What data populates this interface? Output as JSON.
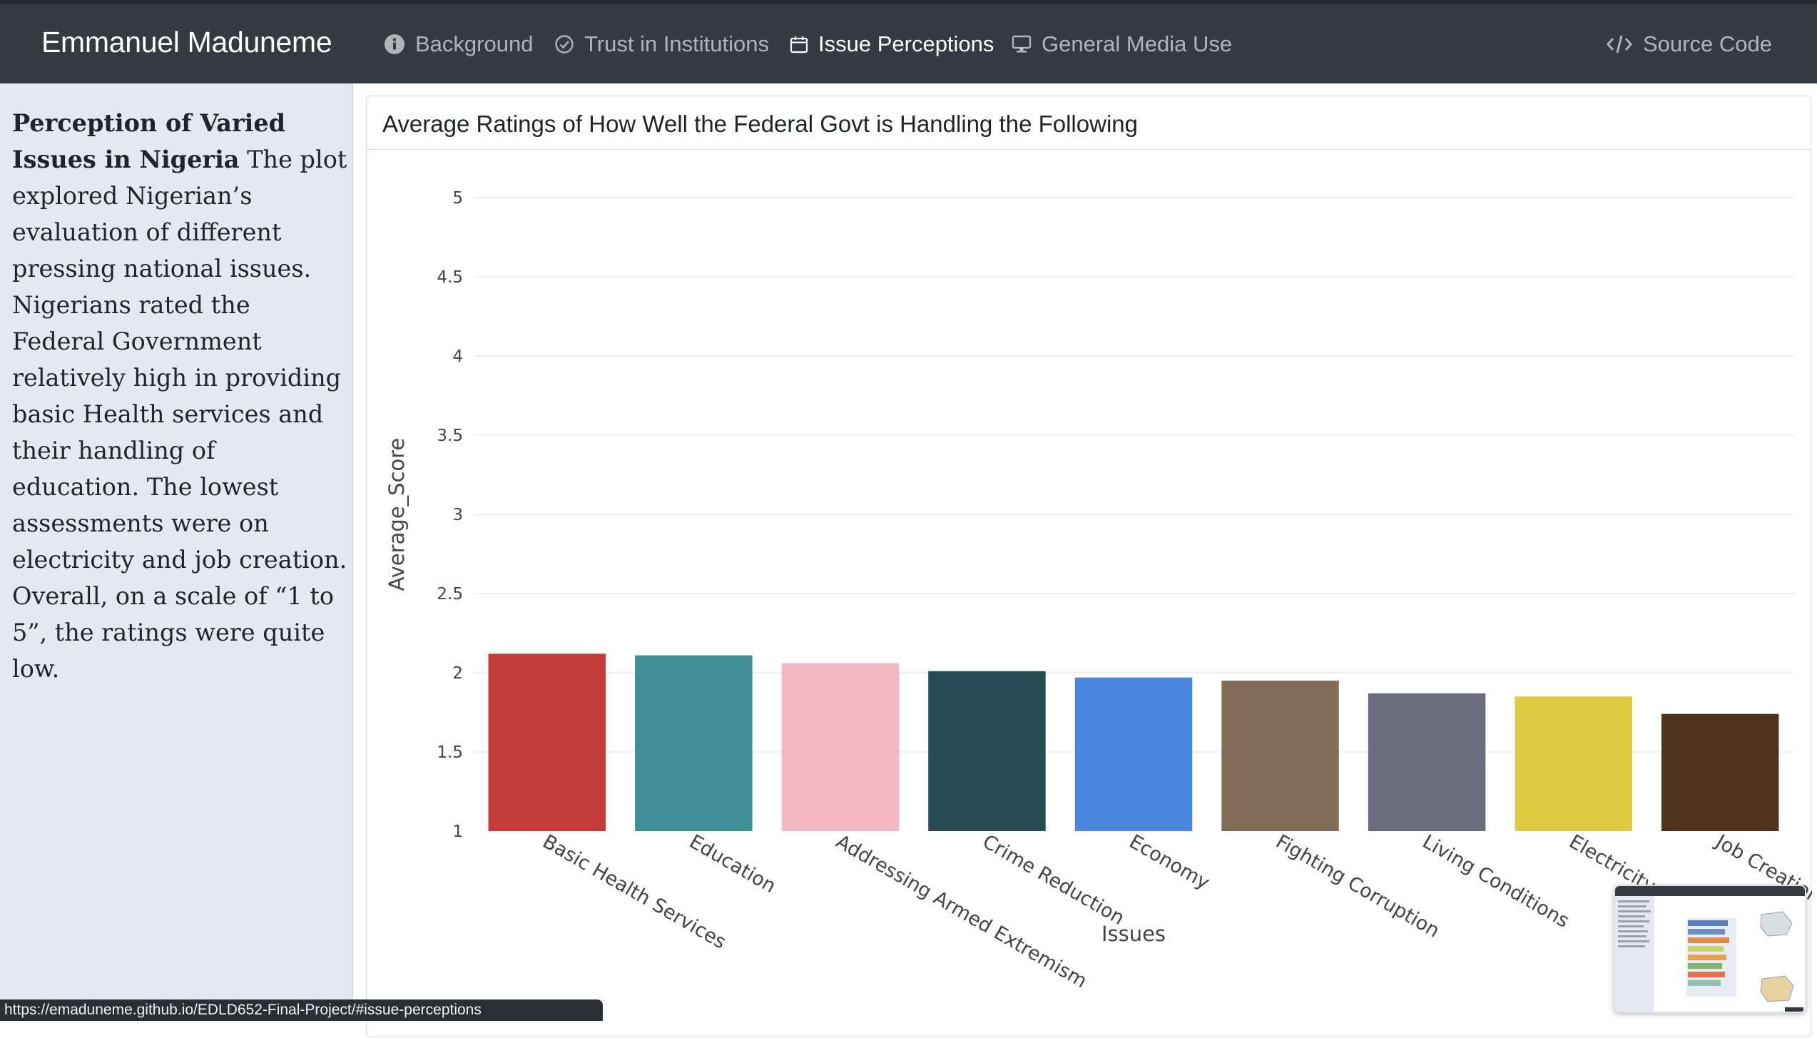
{
  "navbar": {
    "brand": "Emmanuel Maduneme",
    "items": [
      {
        "label": "Background",
        "icon": "info-circle-icon",
        "active": false
      },
      {
        "label": "Trust in Institutions",
        "icon": "check-circle-icon",
        "active": false
      },
      {
        "label": "Issue Perceptions",
        "icon": "calendar-icon",
        "active": true
      },
      {
        "label": "General Media Use",
        "icon": "monitor-icon",
        "active": false
      }
    ],
    "source_code": "Source Code",
    "source_icon": "code-icon"
  },
  "sidebar": {
    "heading": "Perception of Varied Issues in Nigeria",
    "body": "The plot explored Nigerian’s evaluation of different pressing national issues. Nigerians rated the Federal Government relatively high in providing basic Health services and their handling of education. The lowest assessments were on electricity and job creation. Overall, on a scale of “1 to 5”, the ratings were quite low."
  },
  "card": {
    "title": "Average Ratings of How Well the Federal Govt is Handling the Following"
  },
  "chart_data": {
    "type": "bar",
    "title": "Average Ratings of How Well the Federal Govt is Handling the Following",
    "xlabel": "Issues",
    "ylabel": "Average_Score",
    "ylim": [
      1,
      5
    ],
    "yticks": [
      "1",
      "1.5",
      "2",
      "2.5",
      "3",
      "3.5",
      "4",
      "4.5",
      "5"
    ],
    "categories": [
      "Basic Health Services",
      "Education",
      "Addressing Armed Extremism",
      "Crime Reduction",
      "Economy",
      "Fighting Corruption",
      "Living Conditions",
      "Electricity",
      "Job Creation"
    ],
    "values": [
      2.12,
      2.11,
      2.06,
      2.01,
      1.97,
      1.95,
      1.87,
      1.85,
      1.74
    ],
    "colors": [
      "#c43c37",
      "#3e8f96",
      "#f4b8c3",
      "#254b53",
      "#4a86de",
      "#836c57",
      "#6b6d7d",
      "#dfcb41",
      "#4e321c"
    ],
    "grid": true
  },
  "status": {
    "url": "https://emaduneme.github.io/EDLD652-Final-Project/#issue-perceptions"
  }
}
